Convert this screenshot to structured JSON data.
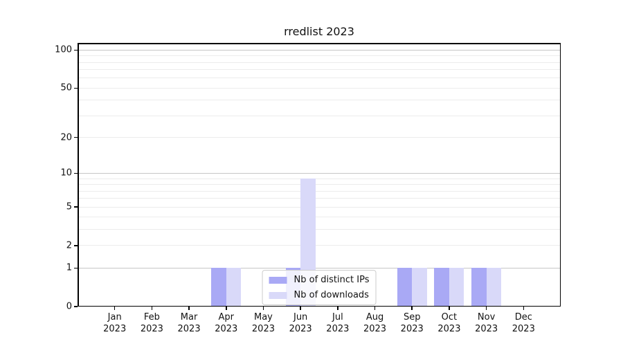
{
  "chart": {
    "title": "rredlist 2023",
    "colors": {
      "bar_ips": "#a9a9f5",
      "bar_downloads": "#d9d9f9",
      "grid_major": "#c6c6c6",
      "grid_minor": "#ececec",
      "axis": "#000000",
      "legend_border": "#cccccc"
    }
  },
  "chart_data": {
    "type": "bar",
    "title": "rredlist 2023",
    "categories": [
      "Jan 2023",
      "Feb 2023",
      "Mar 2023",
      "Apr 2023",
      "May 2023",
      "Jun 2023",
      "Jul 2023",
      "Aug 2023",
      "Sep 2023",
      "Oct 2023",
      "Nov 2023",
      "Dec 2023"
    ],
    "series": [
      {
        "name": "Nb of distinct IPs",
        "color": "#a9a9f5",
        "values": [
          0,
          0,
          0,
          1,
          0,
          1,
          0,
          0,
          1,
          1,
          1,
          0
        ]
      },
      {
        "name": "Nb of downloads",
        "color": "#d9d9f9",
        "values": [
          0,
          0,
          0,
          1,
          0,
          9,
          0,
          0,
          1,
          1,
          1,
          0
        ]
      }
    ],
    "xlabel": "",
    "ylabel": "",
    "yscale": "log1p",
    "ylim": [
      0,
      114
    ],
    "yticks": [
      0,
      1,
      2,
      5,
      10,
      20,
      50,
      100
    ],
    "ygrid_major": [
      1,
      10,
      100
    ],
    "ygrid_minor": [
      2,
      3,
      4,
      5,
      6,
      7,
      8,
      9,
      20,
      30,
      40,
      50,
      60,
      70,
      80,
      90
    ],
    "grid": true,
    "legend_position": "lower center"
  }
}
